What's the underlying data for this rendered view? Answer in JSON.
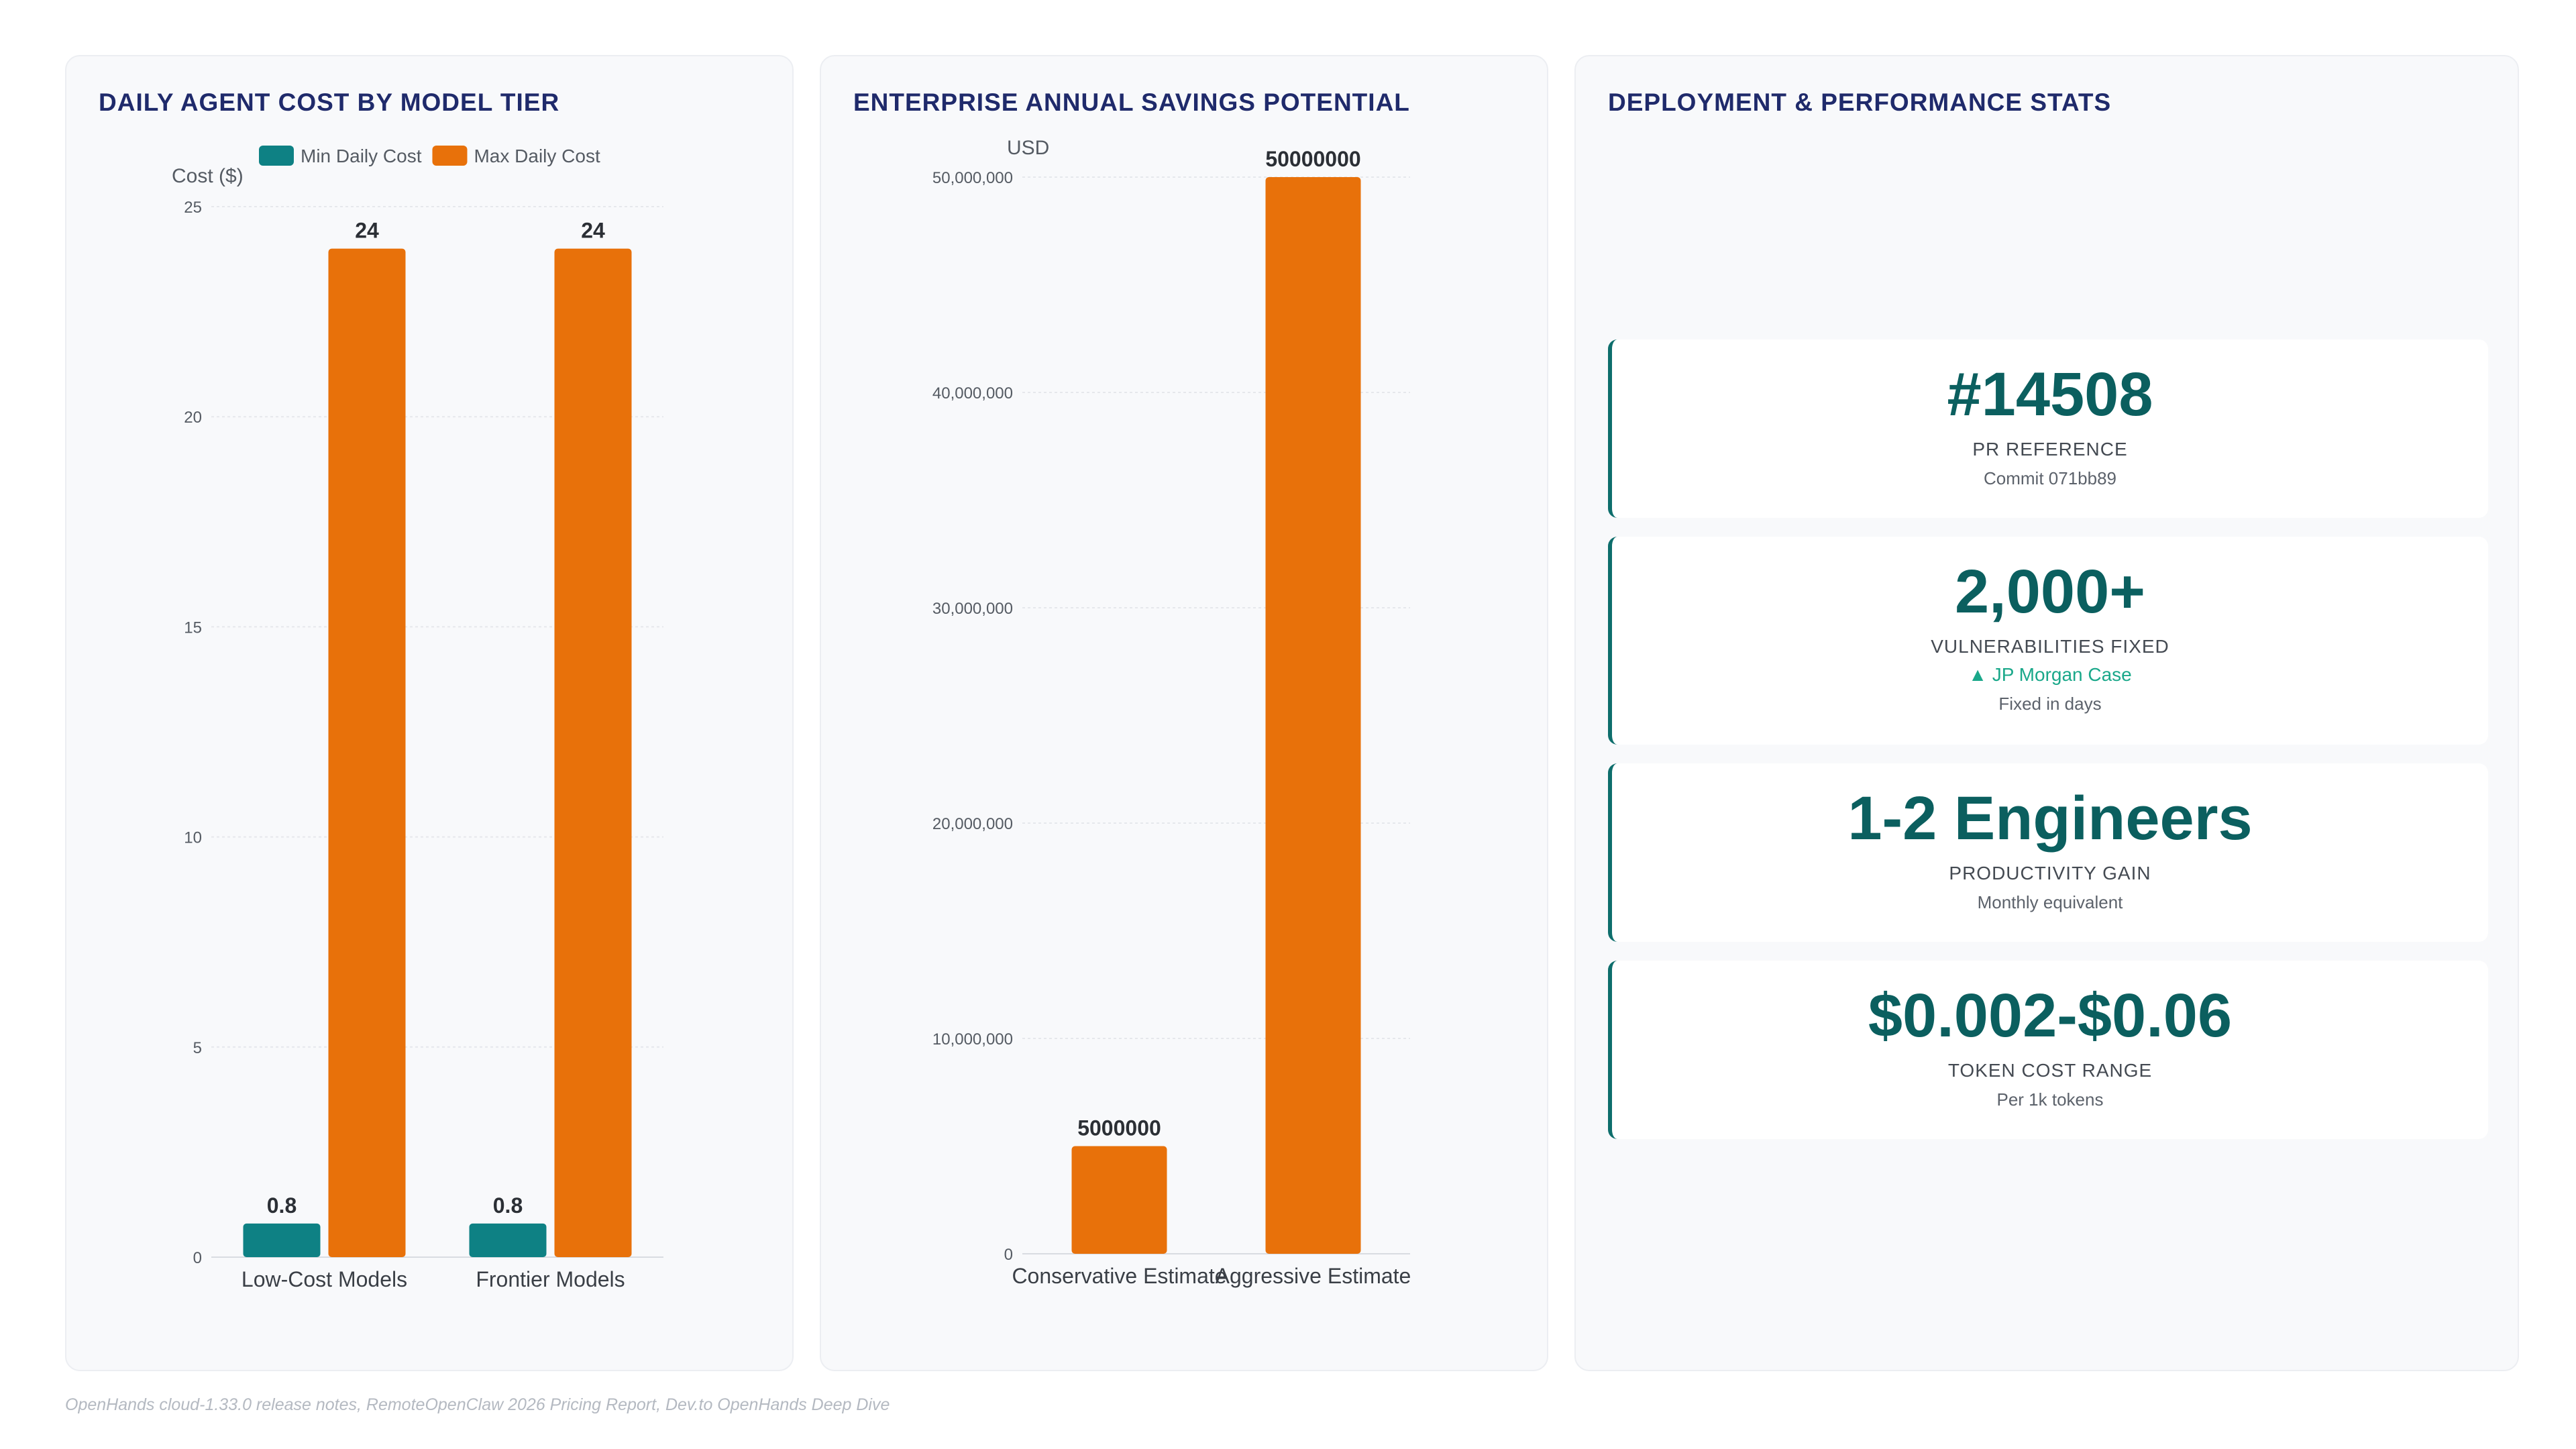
{
  "panels": {
    "cost": {
      "title": "DAILY AGENT COST BY MODEL TIER"
    },
    "savings": {
      "title": "ENTERPRISE ANNUAL SAVINGS POTENTIAL"
    },
    "stats": {
      "title": "DEPLOYMENT & PERFORMANCE STATS"
    }
  },
  "chart_data": [
    {
      "type": "bar",
      "title": "DAILY AGENT COST BY MODEL TIER",
      "categories": [
        "Low-Cost Models",
        "Frontier Models"
      ],
      "series": [
        {
          "name": "Min Daily Cost",
          "values": [
            0.8,
            0.8
          ],
          "color": "#0e8184"
        },
        {
          "name": "Max Daily Cost",
          "values": [
            24,
            24
          ],
          "color": "#e8710a"
        }
      ],
      "ylabel": "Cost ($)",
      "ylim": [
        0,
        25
      ],
      "yticks": [
        0,
        5,
        10,
        15,
        20,
        25
      ],
      "legend": "top-center",
      "grid": true,
      "data_labels": [
        "0.8",
        "24",
        "0.8",
        "24"
      ]
    },
    {
      "type": "bar",
      "title": "ENTERPRISE ANNUAL SAVINGS POTENTIAL",
      "categories": [
        "Conservative Estimate",
        "Aggressive Estimate"
      ],
      "series": [
        {
          "values": [
            5000000,
            50000000
          ],
          "color": "#e8710a"
        }
      ],
      "ylabel": "USD",
      "ylim": [
        0,
        50000000
      ],
      "yticks": [
        0,
        10000000,
        20000000,
        30000000,
        40000000,
        50000000
      ],
      "ytick_labels": [
        "0",
        "10,000,000",
        "20,000,000",
        "30,000,000",
        "40,000,000",
        "50,000,000"
      ],
      "legend": "none",
      "grid": true,
      "data_labels": [
        "5000000",
        "50000000"
      ]
    }
  ],
  "stats": [
    {
      "value": "#14508",
      "label": "PR REFERENCE",
      "sub": "Commit 071bb89"
    },
    {
      "value": "2,000+",
      "label": "VULNERABILITIES FIXED",
      "trend": "▲ JP Morgan Case",
      "sub": "Fixed in days"
    },
    {
      "value": "1-2 Engineers",
      "label": "PRODUCTIVITY GAIN",
      "sub": "Monthly equivalent"
    },
    {
      "value": "$0.002-$0.06",
      "label": "TOKEN COST RANGE",
      "sub": "Per 1k tokens"
    }
  ],
  "source": "OpenHands cloud-1.33.0 release notes, RemoteOpenClaw 2026 Pricing Report, Dev.to OpenHands Deep Dive",
  "colors": {
    "teal": "#0e8184",
    "orange": "#e8710a",
    "title": "#1f2a6b",
    "stat": "#0b5f5f",
    "trend": "#1aa88a"
  }
}
